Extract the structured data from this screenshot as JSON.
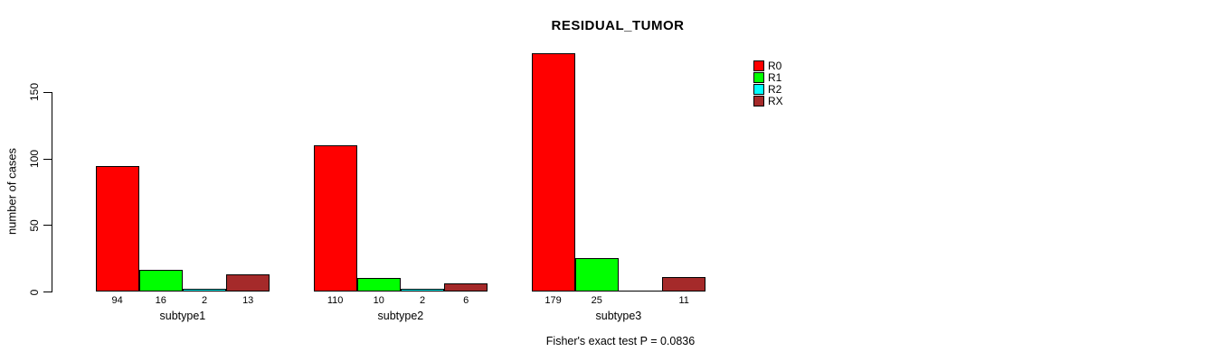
{
  "chart_data": {
    "type": "bar",
    "grouped": true,
    "title": "RESIDUAL_TUMOR",
    "ylabel": "number of cases",
    "xlabel": "",
    "categories": [
      "subtype1",
      "subtype2",
      "subtype3"
    ],
    "series": [
      {
        "name": "R0",
        "color": "#FF0000",
        "values": [
          94,
          110,
          179
        ]
      },
      {
        "name": "R1",
        "color": "#00FF00",
        "values": [
          16,
          10,
          25
        ]
      },
      {
        "name": "R2",
        "color": "#00FFFF",
        "values": [
          2,
          2,
          0
        ]
      },
      {
        "name": "RX",
        "color": "#A52A2A",
        "values": [
          13,
          6,
          11
        ]
      }
    ],
    "value_labels": [
      [
        "94",
        "16",
        "2",
        "13"
      ],
      [
        "110",
        "10",
        "2",
        "6"
      ],
      [
        "179",
        "25",
        "",
        "11"
      ]
    ],
    "yticks": [
      0,
      50,
      100,
      150
    ],
    "ylim": [
      0,
      185
    ],
    "grid": false,
    "legend_position": "right-outside",
    "footnote": "Fisher's exact test P = 0.0836"
  }
}
